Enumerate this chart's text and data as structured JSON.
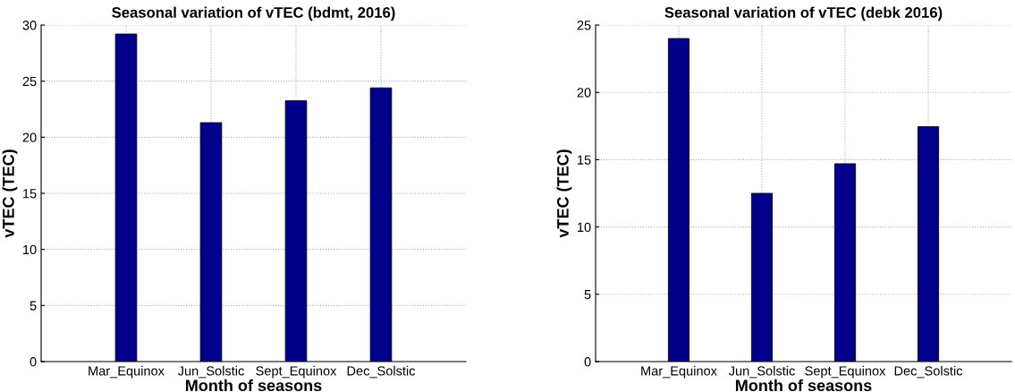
{
  "chart_data": [
    {
      "type": "bar",
      "title": "Seasonal variation of vTEC (bdmt, 2016)",
      "xlabel": "Month of seasons",
      "ylabel": "vTEC (TEC)",
      "categories": [
        "Mar_Equinox",
        "Jun_Solstic",
        "Sept_Equinox",
        "Dec_Solstic"
      ],
      "values": [
        29.2,
        21.3,
        23.25,
        24.4
      ],
      "color": "#00008b",
      "ylim": [
        0,
        30
      ],
      "yticks": [
        0,
        5,
        10,
        15,
        20,
        25,
        30
      ],
      "grid": true
    },
    {
      "type": "bar",
      "title": "Seasonal variation of vTEC (debk 2016)",
      "xlabel": "Month of seasons",
      "ylabel": "vTEC (TEC)",
      "categories": [
        "Mar_Equinox",
        "Jun_Solstic",
        "Sept_Equinox",
        "Dec_Solstic"
      ],
      "values": [
        24.0,
        12.5,
        14.7,
        17.45
      ],
      "color": "#00008b",
      "ylim": [
        0,
        25
      ],
      "yticks": [
        0,
        5,
        10,
        15,
        20,
        25
      ],
      "grid": true
    }
  ]
}
